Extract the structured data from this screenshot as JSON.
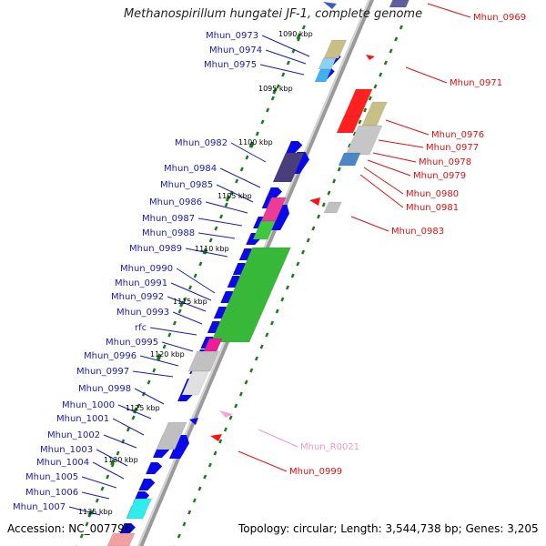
{
  "title": "Methanospirillum hungatei JF-1, complete genome",
  "footer": {
    "accession": "Accession: NC_007796",
    "topology": "Topology: circular; Length: 3,544,738 bp; Genes: 3,205"
  },
  "colors": {
    "backbone": "#9a9a9a",
    "tick": "#1a7a1a",
    "label_forward": "#1a1ab4",
    "label_reverse": "#e01010",
    "label_rna": "#e99ac8",
    "arrow_forward": "#0a0ae8",
    "arrow_reverse": "#ff1010"
  },
  "kbp_labels": [
    "1090 kbp",
    "1095 kbp",
    "1100 kbp",
    "1105 kbp",
    "1110 kbp",
    "1115 kbp",
    "1120 kbp",
    "1125 kbp",
    "1130 kbp",
    "1135 kbp"
  ],
  "genes_left": [
    "Mhun_0973",
    "Mhun_0974",
    "Mhun_0975",
    "Mhun_0982",
    "Mhun_0984",
    "Mhun_0985",
    "Mhun_0986",
    "Mhun_0987",
    "Mhun_0988",
    "Mhun_0989",
    "Mhun_0990",
    "Mhun_0991",
    "Mhun_0992",
    "Mhun_0993",
    "rfc",
    "Mhun_0995",
    "Mhun_0996",
    "Mhun_0997",
    "Mhun_0998",
    "Mhun_1000",
    "Mhun_1001",
    "Mhun_1002",
    "Mhun_1003",
    "Mhun_1004",
    "Mhun_1005",
    "Mhun_1006",
    "Mhun_1007"
  ],
  "genes_right": [
    "Mhun_0969",
    "Mhun_0971",
    "Mhun_0976",
    "Mhun_0977",
    "Mhun_0978",
    "Mhun_0979",
    "Mhun_0980",
    "Mhun_0981",
    "Mhun_0983",
    "Mhun_R0021",
    "Mhun_0999"
  ]
}
